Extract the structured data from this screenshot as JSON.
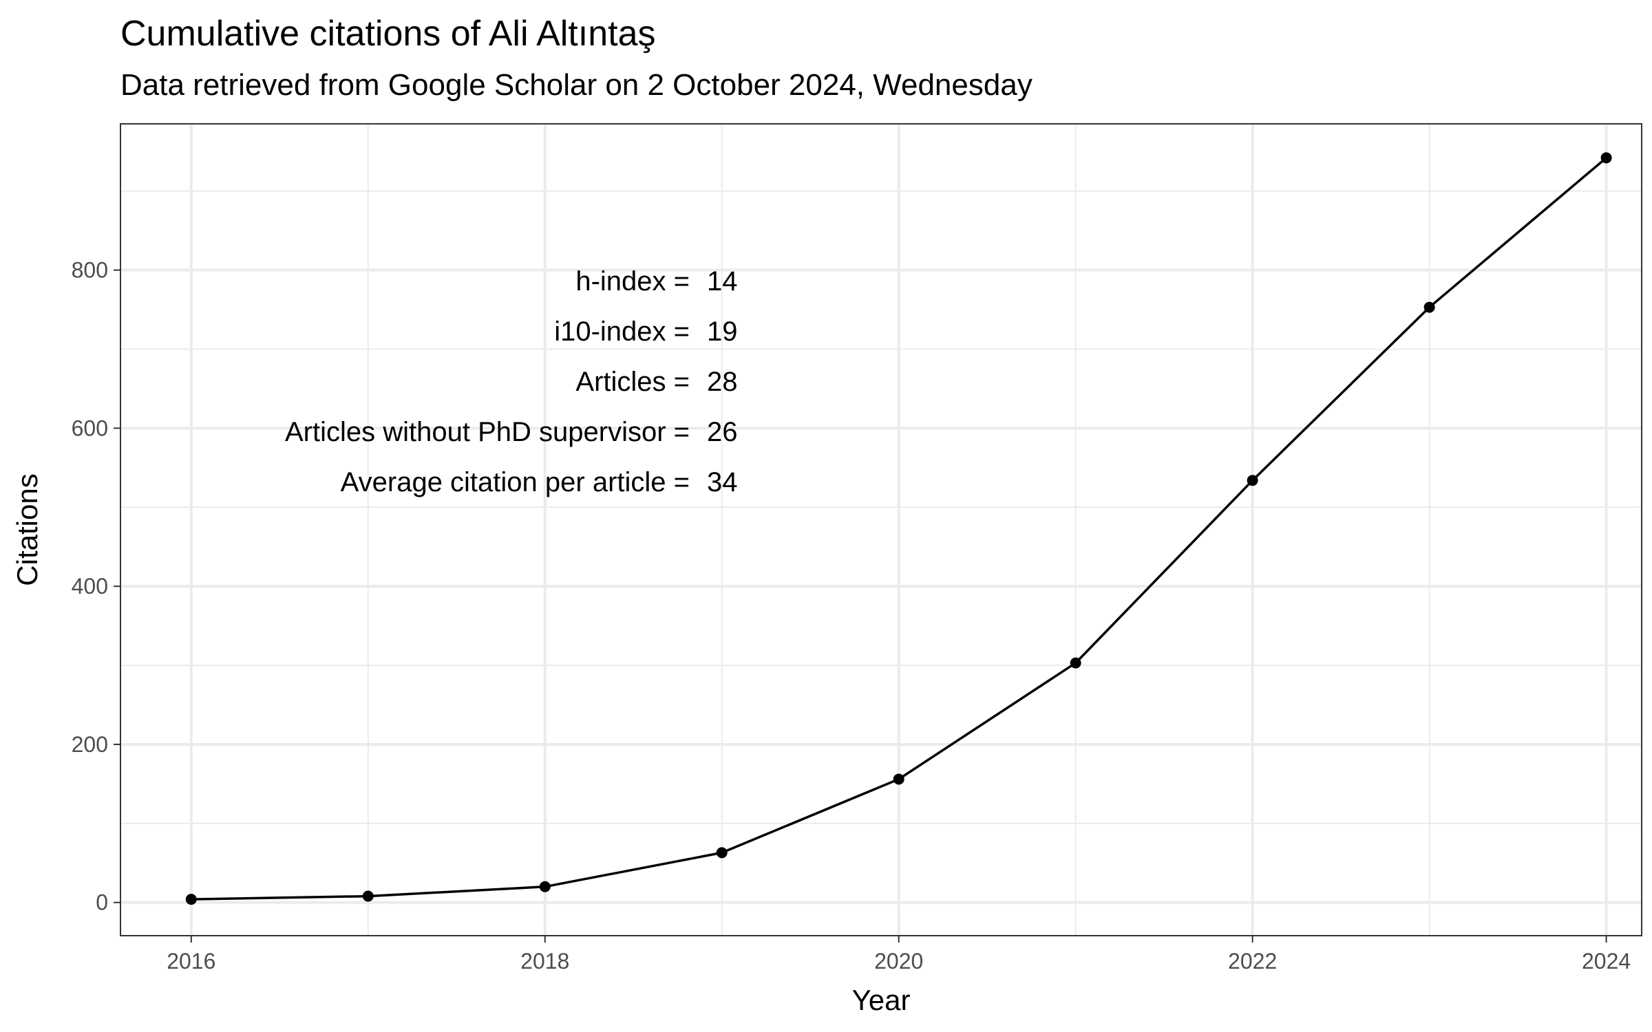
{
  "chart_data": {
    "type": "line",
    "title": "Cumulative citations of Ali Altıntaş",
    "subtitle": "Data retrieved from Google Scholar on 2 October 2024, Wednesday",
    "xlabel": "Year",
    "ylabel": "Citations",
    "x": [
      2016,
      2017,
      2018,
      2019,
      2020,
      2021,
      2022,
      2023,
      2024
    ],
    "series": [
      {
        "values": [
          4,
          8,
          20,
          63,
          156,
          303,
          534,
          753,
          942
        ]
      }
    ],
    "xlim": [
      2015.6,
      2024.2
    ],
    "ylim": [
      -42,
      985
    ],
    "x_ticks": [
      "2016",
      "2018",
      "2020",
      "2022",
      "2024"
    ],
    "y_ticks": [
      "0",
      "200",
      "400",
      "600",
      "800"
    ],
    "grid": true,
    "legend": "none",
    "annotations": [
      {
        "label": "h-index =",
        "value": "14"
      },
      {
        "label": "i10-index =",
        "value": "19"
      },
      {
        "label": "Articles =",
        "value": "28"
      },
      {
        "label": "Articles without PhD supervisor =",
        "value": "26"
      },
      {
        "label": "Average citation per article =",
        "value": "34"
      }
    ],
    "colors": {
      "line": "#000000",
      "grid": "#ebebeb",
      "panel_border": "#333333",
      "tick_text": "#4d4d4d"
    }
  }
}
